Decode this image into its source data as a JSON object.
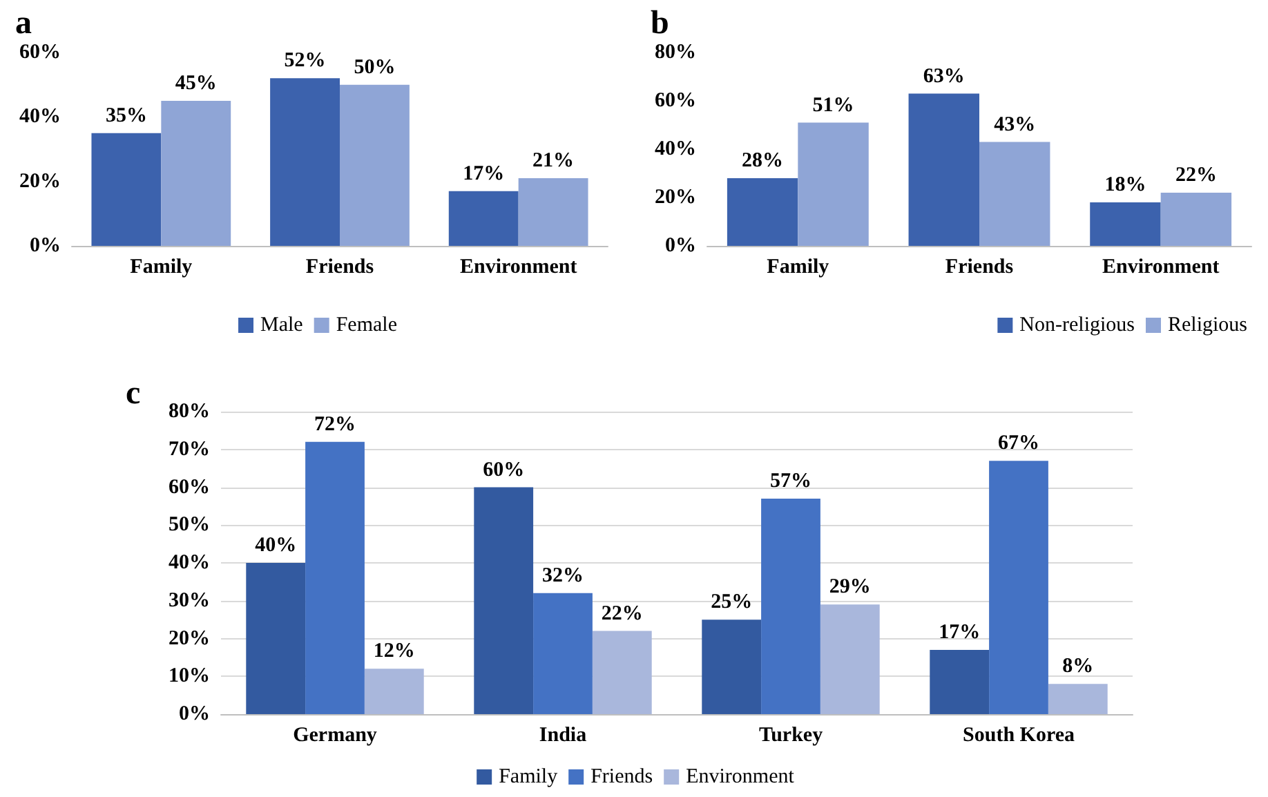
{
  "chart_data": [
    {
      "type": "bar",
      "title": "a",
      "categories": [
        "Family",
        "Friends",
        "Environment"
      ],
      "series": [
        {
          "name": "Male",
          "color": "#3c62ad",
          "values": [
            35,
            52,
            17
          ],
          "value_labels": [
            "35%",
            "52%",
            "17%"
          ]
        },
        {
          "name": "Female",
          "color": "#8fa5d6",
          "values": [
            45,
            50,
            21
          ],
          "value_labels": [
            "45%",
            "50%",
            "21%"
          ]
        }
      ],
      "ylim": [
        0,
        60
      ],
      "yticks": [
        {
          "value": 0,
          "label": "0%"
        },
        {
          "value": 20,
          "label": "20%"
        },
        {
          "value": 40,
          "label": "40%"
        },
        {
          "value": 60,
          "label": "60%"
        }
      ],
      "grid": false,
      "legend": "bottom"
    },
    {
      "type": "bar",
      "title": "b",
      "categories": [
        "Family",
        "Friends",
        "Environment"
      ],
      "series": [
        {
          "name": "Non-religious",
          "color": "#3c62ad",
          "values": [
            28,
            63,
            18
          ],
          "value_labels": [
            "28%",
            "63%",
            "18%"
          ]
        },
        {
          "name": "Religious",
          "color": "#8fa5d6",
          "values": [
            51,
            43,
            22
          ],
          "value_labels": [
            "51%",
            "43%",
            "22%"
          ]
        }
      ],
      "ylim": [
        0,
        80
      ],
      "yticks": [
        {
          "value": 0,
          "label": "0%"
        },
        {
          "value": 20,
          "label": "20%"
        },
        {
          "value": 40,
          "label": "40%"
        },
        {
          "value": 60,
          "label": "60%"
        },
        {
          "value": 80,
          "label": "80%"
        }
      ],
      "grid": false,
      "legend": "bottom right"
    },
    {
      "type": "bar",
      "title": "c",
      "categories": [
        "Germany",
        "India",
        "Turkey",
        "South Korea"
      ],
      "series": [
        {
          "name": "Family",
          "color": "#335aa0",
          "values": [
            40,
            60,
            25,
            17
          ],
          "value_labels": [
            "40%",
            "60%",
            "25%",
            "17%"
          ]
        },
        {
          "name": "Friends",
          "color": "#4472c4",
          "values": [
            72,
            32,
            57,
            67
          ],
          "value_labels": [
            "72%",
            "32%",
            "57%",
            "67%"
          ]
        },
        {
          "name": "Environment",
          "color": "#a9b7dc",
          "values": [
            12,
            22,
            29,
            8
          ],
          "value_labels": [
            "12%",
            "22%",
            "29%",
            "8%"
          ]
        }
      ],
      "ylim": [
        0,
        80
      ],
      "yticks": [
        {
          "value": 0,
          "label": "0%"
        },
        {
          "value": 10,
          "label": "10%"
        },
        {
          "value": 20,
          "label": "20%"
        },
        {
          "value": 30,
          "label": "30%"
        },
        {
          "value": 40,
          "label": "40%"
        },
        {
          "value": 50,
          "label": "50%"
        },
        {
          "value": 60,
          "label": "60%"
        },
        {
          "value": 70,
          "label": "70%"
        },
        {
          "value": 80,
          "label": "80%"
        }
      ],
      "grid": "y",
      "legend": "bottom"
    }
  ]
}
